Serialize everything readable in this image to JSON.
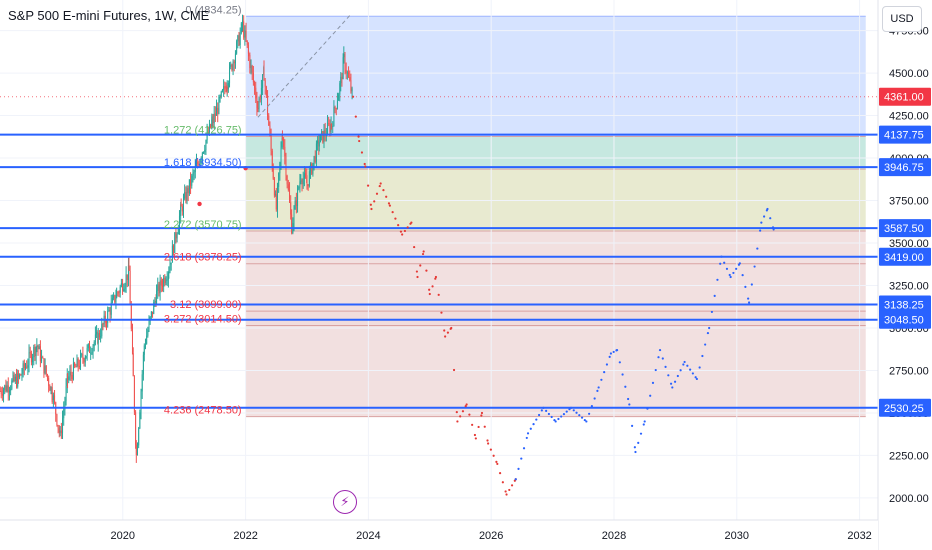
{
  "header": {
    "title": "S&P 500 E-mini Futures, 1W, CME",
    "currency_button": "USD"
  },
  "colors": {
    "up": "#26a69a",
    "down": "#ef5350",
    "level_line": "#2962ff",
    "price_tag": "#f23645",
    "projection_red": "#e53935",
    "projection_blue": "#2962ff",
    "fib_zero_fill": "#bbd0ff",
    "fib_teal_fill": "#a8dccf",
    "fib_olive_fill": "#d8dcb0",
    "fib_rose_fill": "#e8c7c7"
  },
  "icons": {
    "replay": "lightning-icon"
  },
  "chart_data": {
    "type": "candlestick",
    "title": "S&P 500 E-mini Futures, 1W, CME",
    "x_range": [
      2018.0,
      2032.3
    ],
    "y_range": [
      1870,
      4930
    ],
    "x_ticks": [
      "2020",
      "2022",
      "2024",
      "2026",
      "2028",
      "2030",
      "2032"
    ],
    "y_ticks": [
      "4750.00",
      "4500.00",
      "4250.00",
      "4000.00",
      "3750.00",
      "3500.00",
      "3250.00",
      "3000.00",
      "2750.00",
      "2500.00",
      "2250.00",
      "2000.00"
    ],
    "current_price": {
      "value": 4361.0,
      "label": "4361.00"
    },
    "horizontal_levels": [
      {
        "value": 4137.75,
        "label": "4137.75"
      },
      {
        "value": 3946.75,
        "label": "3946.75"
      },
      {
        "value": 3587.5,
        "label": "3587.50"
      },
      {
        "value": 3419.0,
        "label": "3419.00"
      },
      {
        "value": 3138.25,
        "label": "3138.25"
      },
      {
        "value": 3048.5,
        "label": "3048.50"
      },
      {
        "value": 2530.25,
        "label": "2530.25"
      }
    ],
    "fib_extension": {
      "x_start": 2022.0,
      "x_end": 2032.1,
      "levels": [
        {
          "ratio": 0,
          "price": 4834.25,
          "label": "0 (4834.25)"
        },
        {
          "ratio": 1.272,
          "price": 4126.75,
          "label": "1.272 (4126.75)"
        },
        {
          "ratio": 1.618,
          "price": 3934.5,
          "label": "1.618 (3934.50)"
        },
        {
          "ratio": 2.272,
          "price": 3570.75,
          "label": "2.272 (3570.75)"
        },
        {
          "ratio": 2.618,
          "price": 3378.25,
          "label": "2.618 (3378.25)"
        },
        {
          "ratio": 3.12,
          "price": 3099.0,
          "label": "3.12 (3099.00)"
        },
        {
          "ratio": 3.272,
          "price": 3014.5,
          "label": "3.272 (3014.50)"
        },
        {
          "ratio": 4.236,
          "price": 2478.5,
          "label": "4.236 (2478.50)"
        }
      ]
    },
    "trend_line": {
      "from": [
        2022.2,
        4240
      ],
      "to": [
        2023.7,
        4840
      ]
    },
    "marker_points": [
      {
        "x": 2021.25,
        "y": 3730
      },
      {
        "x": 2022.0,
        "y": 3940
      }
    ],
    "price_anchors": [
      [
        2018.0,
        2630
      ],
      [
        2018.3,
        2700
      ],
      [
        2018.6,
        2900
      ],
      [
        2018.85,
        2620
      ],
      [
        2018.98,
        2360
      ],
      [
        2019.1,
        2700
      ],
      [
        2019.4,
        2850
      ],
      [
        2019.6,
        2950
      ],
      [
        2019.9,
        3200
      ],
      [
        2020.1,
        3330
      ],
      [
        2020.17,
        2700
      ],
      [
        2020.22,
        2250
      ],
      [
        2020.35,
        2900
      ],
      [
        2020.55,
        3200
      ],
      [
        2020.75,
        3350
      ],
      [
        2020.95,
        3700
      ],
      [
        2021.2,
        3950
      ],
      [
        2021.45,
        4200
      ],
      [
        2021.7,
        4450
      ],
      [
        2021.95,
        4780
      ],
      [
        2022.05,
        4600
      ],
      [
        2022.2,
        4300
      ],
      [
        2022.3,
        4500
      ],
      [
        2022.45,
        3900
      ],
      [
        2022.5,
        3700
      ],
      [
        2022.6,
        4150
      ],
      [
        2022.75,
        3600
      ],
      [
        2022.9,
        3900
      ],
      [
        2023.0,
        3850
      ],
      [
        2023.2,
        4100
      ],
      [
        2023.4,
        4200
      ],
      [
        2023.55,
        4450
      ],
      [
        2023.6,
        4580
      ],
      [
        2023.75,
        4350
      ]
    ],
    "projection_red_anchors": [
      [
        2023.75,
        4361
      ],
      [
        2023.85,
        4100
      ],
      [
        2023.95,
        3950
      ],
      [
        2024.05,
        3700
      ],
      [
        2024.2,
        3850
      ],
      [
        2024.35,
        3720
      ],
      [
        2024.55,
        3550
      ],
      [
        2024.7,
        3620
      ],
      [
        2024.8,
        3300
      ],
      [
        2024.9,
        3450
      ],
      [
        2025.0,
        3200
      ],
      [
        2025.1,
        3300
      ],
      [
        2025.25,
        2950
      ],
      [
        2025.35,
        3000
      ],
      [
        2025.45,
        2450
      ],
      [
        2025.6,
        2550
      ],
      [
        2025.75,
        2350
      ],
      [
        2025.85,
        2500
      ],
      [
        2025.95,
        2320
      ],
      [
        2026.1,
        2200
      ],
      [
        2026.25,
        2020
      ],
      [
        2026.4,
        2110
      ]
    ],
    "projection_blue_anchors": [
      [
        2026.4,
        2110
      ],
      [
        2026.6,
        2380
      ],
      [
        2026.85,
        2530
      ],
      [
        2027.05,
        2450
      ],
      [
        2027.3,
        2530
      ],
      [
        2027.55,
        2450
      ],
      [
        2027.75,
        2650
      ],
      [
        2027.95,
        2850
      ],
      [
        2028.05,
        2870
      ],
      [
        2028.25,
        2550
      ],
      [
        2028.35,
        2270
      ],
      [
        2028.5,
        2450
      ],
      [
        2028.75,
        2870
      ],
      [
        2028.95,
        2650
      ],
      [
        2029.15,
        2800
      ],
      [
        2029.35,
        2700
      ],
      [
        2029.55,
        3000
      ],
      [
        2029.75,
        3420
      ],
      [
        2029.9,
        3300
      ],
      [
        2030.05,
        3380
      ],
      [
        2030.2,
        3150
      ],
      [
        2030.4,
        3620
      ],
      [
        2030.5,
        3700
      ],
      [
        2030.6,
        3580
      ]
    ]
  }
}
